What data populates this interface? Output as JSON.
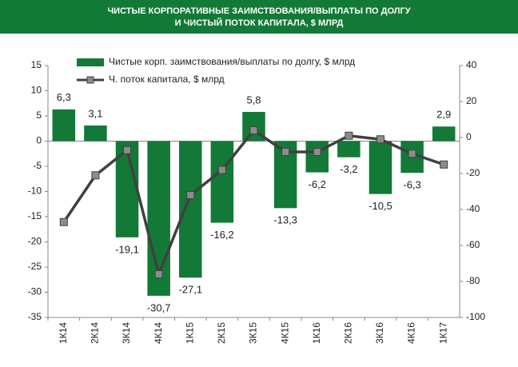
{
  "chart_data": {
    "type": "bar-line",
    "title": [
      "ЧИСТЫЕ КОРПОРАТИВНЫЕ ЗАИМСТВОВАНИЯ/ВЫПЛАТЫ ПО ДОЛГУ",
      "И ЧИСТЫЙ ПОТОК КАПИТАЛА, $ МЛРД"
    ],
    "categories": [
      "1К14",
      "2К14",
      "3К14",
      "4К14",
      "1К15",
      "2К15",
      "3К15",
      "4К15",
      "1К16",
      "2К16",
      "3К16",
      "4К16",
      "1К17"
    ],
    "series": [
      {
        "name": "Чистые корп. заимствования/выплаты по долгу, $ млрд",
        "type": "bar",
        "color": "#127a36",
        "values": [
          6.3,
          3.1,
          -19.1,
          -30.7,
          -27.1,
          -16.2,
          5.8,
          -13.3,
          -6.2,
          -3.2,
          -10.5,
          -6.3,
          2.9
        ],
        "value_labels": [
          "6,3",
          "3,1",
          "-19,1",
          "-30,7",
          "-27,1",
          "-16,2",
          "5,8",
          "-13,3",
          "-6,2",
          "-3,2",
          "-10,5",
          "-6,3",
          "2,9"
        ]
      },
      {
        "name": "Ч. поток капитала, $ млрд",
        "type": "line",
        "axis": "y2",
        "color": "#404040",
        "marker_color": "#8c8c8c",
        "values": [
          -47,
          -21,
          -7,
          -76,
          -32,
          -18,
          4,
          -8,
          -8,
          1,
          -1,
          -9,
          -15
        ]
      }
    ],
    "ylim": [
      -35,
      15
    ],
    "yticks": [
      15,
      10,
      5,
      0,
      -5,
      -10,
      -15,
      -20,
      -25,
      -30,
      -35
    ],
    "y2lim": [
      -100,
      40
    ],
    "y2ticks": [
      40,
      20,
      0,
      -20,
      -40,
      -60,
      -80,
      -100
    ],
    "grid": false,
    "legend": "top-left",
    "header_color": "#127a36"
  }
}
